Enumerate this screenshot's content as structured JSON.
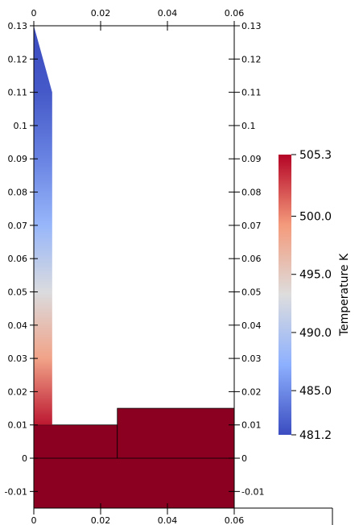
{
  "chart_data": {
    "type": "heatmap",
    "title": "",
    "xlim": [
      0,
      0.06
    ],
    "ylim": [
      -0.015,
      0.13
    ],
    "x_ticks": [
      "0",
      "0.02",
      "0.04",
      "0.06"
    ],
    "x_tick_values": [
      0,
      0.02,
      0.04,
      0.06
    ],
    "y_ticks": [
      "-0.01",
      "0",
      "0.01",
      "0.02",
      "0.03",
      "0.04",
      "0.05",
      "0.06",
      "0.07",
      "0.08",
      "0.09",
      "0.1",
      "0.11",
      "0.12",
      "0.13"
    ],
    "y_tick_values": [
      -0.01,
      0,
      0.01,
      0.02,
      0.03,
      0.04,
      0.05,
      0.06,
      0.07,
      0.08,
      0.09,
      0.1,
      0.11,
      0.12,
      0.13
    ],
    "field": {
      "name": "Temperature",
      "unit": "K",
      "colorbar_title": "Temperature  K",
      "range": [
        481.2,
        505.3
      ],
      "colorbar_ticks": [
        "505.3",
        "500.0",
        "495.0",
        "490.0",
        "485.0",
        "481.2"
      ],
      "colorbar_tick_values": [
        505.3,
        500.0,
        495.0,
        490.0,
        485.0,
        481.2
      ],
      "colormap": "cool-to-warm",
      "colormap_stops": [
        "#3b4cc0",
        "#8db0fe",
        "#dddddd",
        "#f49a7b",
        "#b40426"
      ]
    },
    "geometry": {
      "base_block": {
        "x": [
          0,
          0.06
        ],
        "y": [
          -0.015,
          0
        ],
        "temperature": 505.3
      },
      "left_step": {
        "x": [
          0,
          0.025
        ],
        "y": [
          0,
          0.01
        ],
        "temperature": 505.3
      },
      "right_step": {
        "x": [
          0.025,
          0.06
        ],
        "y": [
          0,
          0.015
        ],
        "temperature": 505.3
      },
      "column": {
        "outline": [
          [
            0,
            0.01
          ],
          [
            0.0055,
            0.01
          ],
          [
            0.0055,
            0.11
          ],
          [
            0,
            0.13
          ]
        ],
        "temperature_by_y": [
          {
            "y": 0.01,
            "t": 504.5
          },
          {
            "y": 0.03,
            "t": 498.5
          },
          {
            "y": 0.05,
            "t": 493.0
          },
          {
            "y": 0.07,
            "t": 488.0
          },
          {
            "y": 0.09,
            "t": 484.5
          },
          {
            "y": 0.11,
            "t": 482.0
          },
          {
            "y": 0.13,
            "t": 481.2
          }
        ]
      }
    },
    "colors": {
      "block": "#8b0020",
      "line": "#000000"
    }
  }
}
